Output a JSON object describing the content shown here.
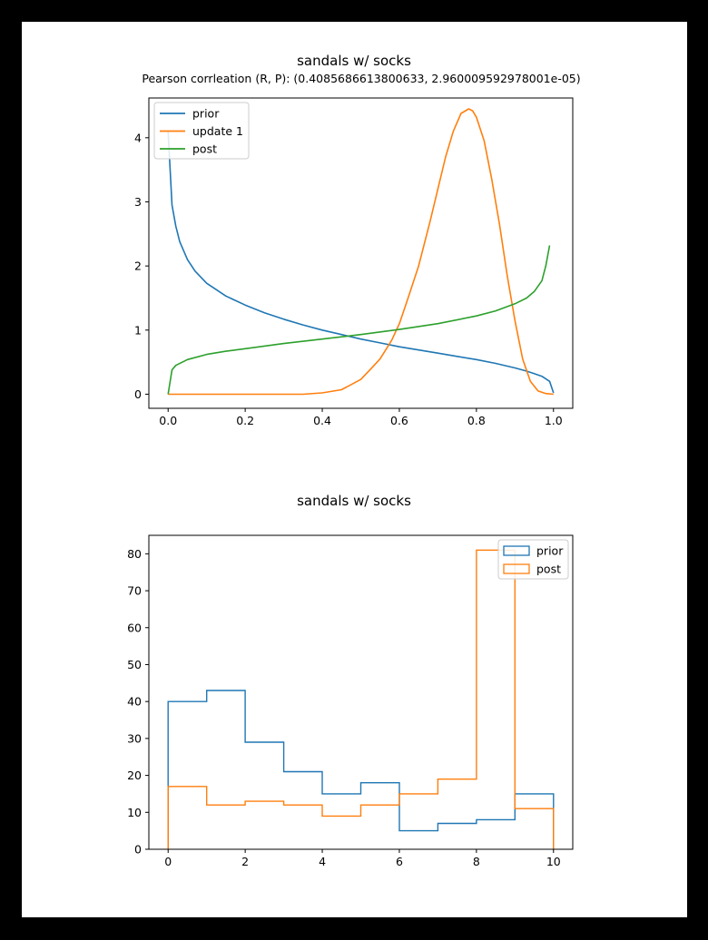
{
  "chart_data": [
    {
      "type": "line",
      "title": "sandals w/ socks",
      "subtitle": "Pearson corrleation (R, P): (0.4085686613800633, 2.960009592978001e-05)",
      "xlabel": "",
      "ylabel": "",
      "xlim": [
        -0.05,
        1.05
      ],
      "ylim": [
        -0.22,
        4.62
      ],
      "xticks": [
        0.0,
        0.2,
        0.4,
        0.6,
        0.8,
        1.0
      ],
      "xtick_labels": [
        "0.0",
        "0.2",
        "0.4",
        "0.6",
        "0.8",
        "1.0"
      ],
      "yticks": [
        0,
        1,
        2,
        3,
        4
      ],
      "ytick_labels": [
        "0",
        "1",
        "2",
        "3",
        "4"
      ],
      "grid": false,
      "legend_position": "upper-left",
      "series": [
        {
          "name": "prior",
          "color": "#1f77b4",
          "x": [
            0.0,
            0.01,
            0.02,
            0.03,
            0.05,
            0.07,
            0.1,
            0.15,
            0.2,
            0.25,
            0.3,
            0.35,
            0.4,
            0.45,
            0.5,
            0.55,
            0.6,
            0.65,
            0.7,
            0.75,
            0.8,
            0.85,
            0.9,
            0.93,
            0.95,
            0.97,
            0.99,
            1.0
          ],
          "y": [
            4.1,
            2.95,
            2.62,
            2.38,
            2.1,
            1.92,
            1.73,
            1.53,
            1.39,
            1.27,
            1.17,
            1.08,
            1.0,
            0.93,
            0.86,
            0.8,
            0.74,
            0.69,
            0.64,
            0.59,
            0.54,
            0.48,
            0.41,
            0.36,
            0.32,
            0.28,
            0.2,
            0.02
          ]
        },
        {
          "name": "update 1",
          "color": "#ff7f0e",
          "x": [
            0.0,
            0.2,
            0.35,
            0.4,
            0.45,
            0.5,
            0.53,
            0.55,
            0.58,
            0.6,
            0.62,
            0.65,
            0.68,
            0.7,
            0.72,
            0.74,
            0.76,
            0.78,
            0.79,
            0.8,
            0.82,
            0.84,
            0.86,
            0.88,
            0.9,
            0.92,
            0.94,
            0.96,
            0.98,
            1.0
          ],
          "y": [
            0.0,
            0.0,
            0.0,
            0.02,
            0.07,
            0.23,
            0.42,
            0.55,
            0.84,
            1.1,
            1.45,
            2.0,
            2.7,
            3.2,
            3.7,
            4.1,
            4.38,
            4.45,
            4.42,
            4.32,
            3.95,
            3.35,
            2.65,
            1.85,
            1.15,
            0.55,
            0.2,
            0.05,
            0.01,
            0.0
          ]
        },
        {
          "name": "post",
          "color": "#2ca02c",
          "x": [
            0.0,
            0.01,
            0.02,
            0.05,
            0.1,
            0.15,
            0.2,
            0.3,
            0.4,
            0.5,
            0.6,
            0.7,
            0.8,
            0.85,
            0.9,
            0.93,
            0.95,
            0.97,
            0.98,
            0.99
          ],
          "y": [
            0.0,
            0.38,
            0.45,
            0.54,
            0.62,
            0.67,
            0.71,
            0.79,
            0.86,
            0.93,
            1.01,
            1.1,
            1.22,
            1.3,
            1.41,
            1.5,
            1.6,
            1.77,
            2.0,
            2.32
          ]
        }
      ]
    },
    {
      "type": "histogram",
      "title": "sandals w/ socks",
      "xlabel": "",
      "ylabel": "",
      "xlim": [
        -0.5,
        10.5
      ],
      "ylim": [
        0,
        85
      ],
      "xticks": [
        0,
        2,
        4,
        6,
        8,
        10
      ],
      "xtick_labels": [
        "0",
        "2",
        "4",
        "6",
        "8",
        "10"
      ],
      "yticks": [
        0,
        10,
        20,
        30,
        40,
        50,
        60,
        70,
        80
      ],
      "ytick_labels": [
        "0",
        "10",
        "20",
        "30",
        "40",
        "50",
        "60",
        "70",
        "80"
      ],
      "grid": false,
      "legend_position": "upper-right",
      "bin_edges": [
        0,
        1,
        2,
        3,
        4,
        5,
        6,
        7,
        8,
        9,
        10
      ],
      "series": [
        {
          "name": "prior",
          "color": "#1f77b4",
          "values": [
            40,
            43,
            29,
            21,
            15,
            18,
            5,
            7,
            8,
            15
          ]
        },
        {
          "name": "post",
          "color": "#ff7f0e",
          "values": [
            17,
            12,
            13,
            12,
            9,
            12,
            15,
            19,
            81,
            11
          ]
        }
      ]
    }
  ]
}
